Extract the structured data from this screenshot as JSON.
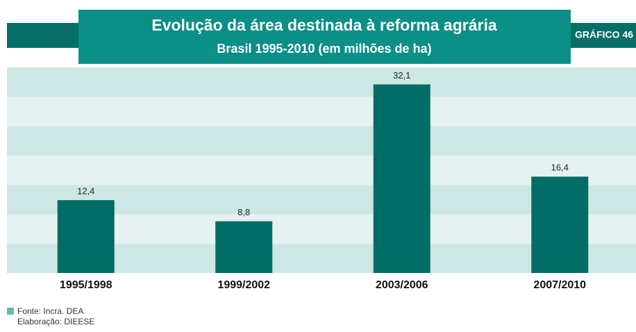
{
  "chart_data": {
    "type": "bar",
    "title": "Evolução da área destinada à reforma agrária",
    "subtitle": "Brasil 1995-2010 (em milhões de ha)",
    "badge": "GRÁFICO 46",
    "categories": [
      "1995/1998",
      "1999/2002",
      "2003/2006",
      "2007/2010"
    ],
    "values": [
      12.4,
      8.8,
      32.1,
      16.4
    ],
    "value_labels": [
      "12,4",
      "8,8",
      "32,1",
      "16,4"
    ],
    "color": "#016d66",
    "ylim": [
      0,
      35
    ],
    "yticks": [
      0,
      5,
      10,
      15,
      20,
      25,
      30,
      35
    ],
    "source": "Fonte: Incra. DEA",
    "credit": "Elaboração: DIEESE"
  }
}
